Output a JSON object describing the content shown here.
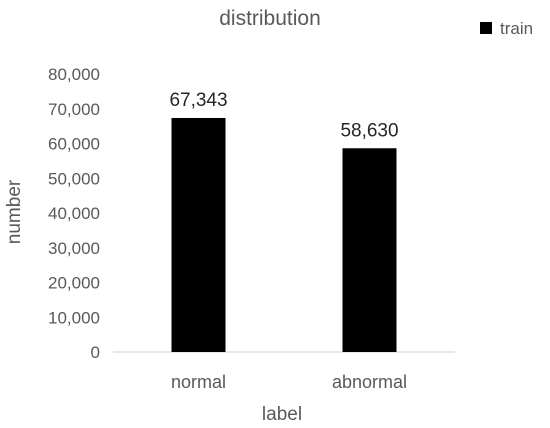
{
  "chart_data": {
    "type": "bar",
    "title": "distribution",
    "xlabel": "label",
    "ylabel": "number",
    "categories": [
      "normal",
      "abnormal"
    ],
    "series": [
      {
        "name": "train",
        "values": [
          67343,
          58630
        ],
        "color": "#000000"
      }
    ],
    "data_labels": [
      "67,343",
      "58,630"
    ],
    "y_ticks": [
      0,
      10000,
      20000,
      30000,
      40000,
      50000,
      60000,
      70000,
      80000
    ],
    "y_tick_labels": [
      "0",
      "10,000",
      "20,000",
      "30,000",
      "40,000",
      "50,000",
      "60,000",
      "70,000",
      "80,000"
    ],
    "ylim": [
      0,
      80000
    ],
    "grid": false,
    "legend_position": "top-right",
    "axis_color": "#d9d9d9",
    "text_color": "#595959"
  }
}
